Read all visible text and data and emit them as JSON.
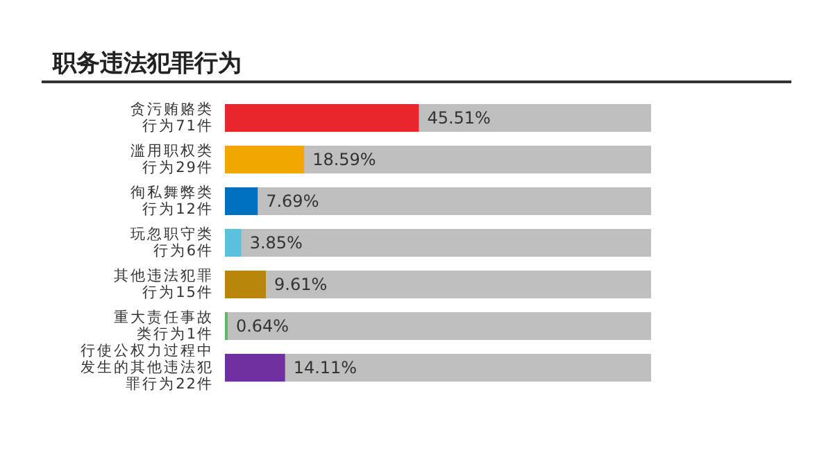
{
  "chart_data": {
    "type": "bar",
    "orientation": "horizontal",
    "title": "职务违法犯罪行为",
    "categories": [
      "贪污贿赂类行为71件",
      "滥用职权类行为29件",
      "徇私舞弊类行为12件",
      "玩忽职守类行为6件",
      "其他违法犯罪行为15件",
      "重大责任事故类行为1件",
      "行使公权力过程中发生的其他违法犯罪行为22件"
    ],
    "values": [
      45.51,
      18.59,
      7.69,
      3.85,
      9.61,
      0.64,
      14.11
    ],
    "colors": [
      "#e8262b",
      "#f0a800",
      "#0070c0",
      "#5bc0de",
      "#b8860b",
      "#5cb85c",
      "#7030a0"
    ],
    "value_labels": [
      "45.51%",
      "18.59%",
      "7.69%",
      "3.85%",
      "9.61%",
      "0.64%",
      "14.11%"
    ],
    "xlim": [
      0,
      100
    ],
    "tick_labels": "y"
  }
}
